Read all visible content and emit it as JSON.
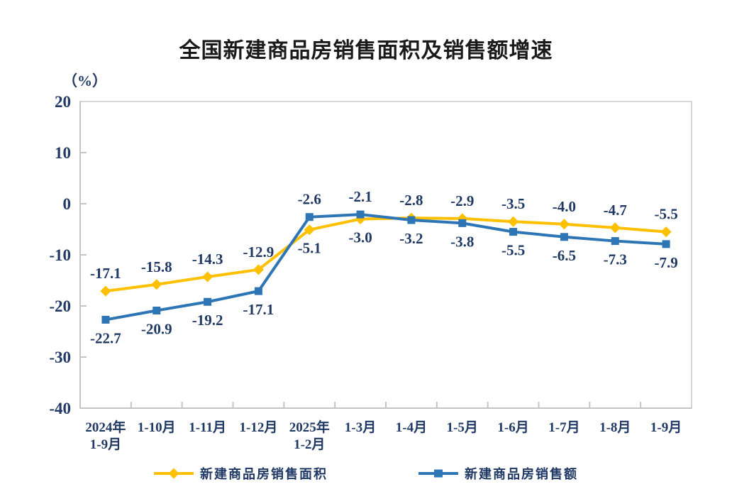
{
  "chart_data": {
    "type": "line",
    "title": "全国新建商品房销售面积及销售额增速",
    "unit_label": "（%）",
    "categories": [
      "2024年\n1-9月",
      "1-10月",
      "1-11月",
      "1-12月",
      "2025年\n1-2月",
      "1-3月",
      "1-4月",
      "1-5月",
      "1-6月",
      "1-7月",
      "1-8月",
      "1-9月"
    ],
    "y_ticks": [
      20,
      10,
      0,
      -10,
      -20,
      -30,
      -40
    ],
    "ylim": [
      -40,
      20
    ],
    "grid": false,
    "legend_position": "bottom",
    "data_label_decimals": 1,
    "series": [
      {
        "name": "新建商品房销售面积",
        "marker": "diamond",
        "color": "#FFC000",
        "values": [
          -17.1,
          -15.8,
          -14.3,
          -12.9,
          -5.1,
          -3.0,
          -2.8,
          -2.9,
          -3.5,
          -4.0,
          -4.7,
          -5.5
        ],
        "label_side": [
          "above",
          "above",
          "above",
          "above",
          "below",
          "below",
          "above",
          "above",
          "above",
          "above",
          "above",
          "above"
        ]
      },
      {
        "name": "新建商品房销售额",
        "marker": "square",
        "color": "#2E75B6",
        "values": [
          -22.7,
          -20.9,
          -19.2,
          -17.1,
          -2.6,
          -2.1,
          -3.2,
          -3.8,
          -5.5,
          -6.5,
          -7.3,
          -7.9
        ],
        "label_side": [
          "below",
          "below",
          "below",
          "below",
          "above",
          "above",
          "below",
          "below",
          "below",
          "below",
          "below",
          "below"
        ]
      }
    ],
    "colors": {
      "data_label": "#1F3864",
      "axis_line": "#C4C4C4",
      "plot_border": "#D6D6D6",
      "title_text": "#1A1A1A"
    }
  }
}
